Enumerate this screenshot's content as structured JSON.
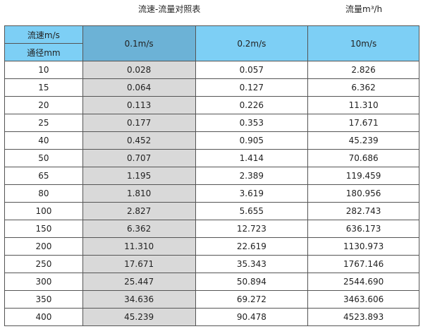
{
  "title": "流速-流量对照表",
  "unit": "流量m³/h",
  "header": {
    "speed_label": "流速m/s",
    "diameter_label": "通径mm",
    "columns": [
      "0.1m/s",
      "0.2m/s",
      "10m/s"
    ]
  },
  "colors": {
    "header": "#7dcff5",
    "header_highlight": "#6cb2d6",
    "highlight_column": "#d9d9d9"
  },
  "rows": [
    [
      "10",
      "0.028",
      "0.057",
      "2.826"
    ],
    [
      "15",
      "0.064",
      "0.127",
      "6.362"
    ],
    [
      "20",
      "0.113",
      "0.226",
      "11.310"
    ],
    [
      "25",
      "0.177",
      "0.353",
      "17.671"
    ],
    [
      "40",
      "0.452",
      "0.905",
      "45.239"
    ],
    [
      "50",
      "0.707",
      "1.414",
      "70.686"
    ],
    [
      "65",
      "1.195",
      "2.389",
      "119.459"
    ],
    [
      "80",
      "1.810",
      "3.619",
      "180.956"
    ],
    [
      "100",
      "2.827",
      "5.655",
      "282.743"
    ],
    [
      "150",
      "6.362",
      "12.723",
      "636.173"
    ],
    [
      "200",
      "11.310",
      "22.619",
      "1130.973"
    ],
    [
      "250",
      "17.671",
      "35.343",
      "1767.146"
    ],
    [
      "300",
      "25.447",
      "50.894",
      "2544.690"
    ],
    [
      "350",
      "34.636",
      "69.272",
      "3463.606"
    ],
    [
      "400",
      "45.239",
      "90.478",
      "4523.893"
    ]
  ]
}
